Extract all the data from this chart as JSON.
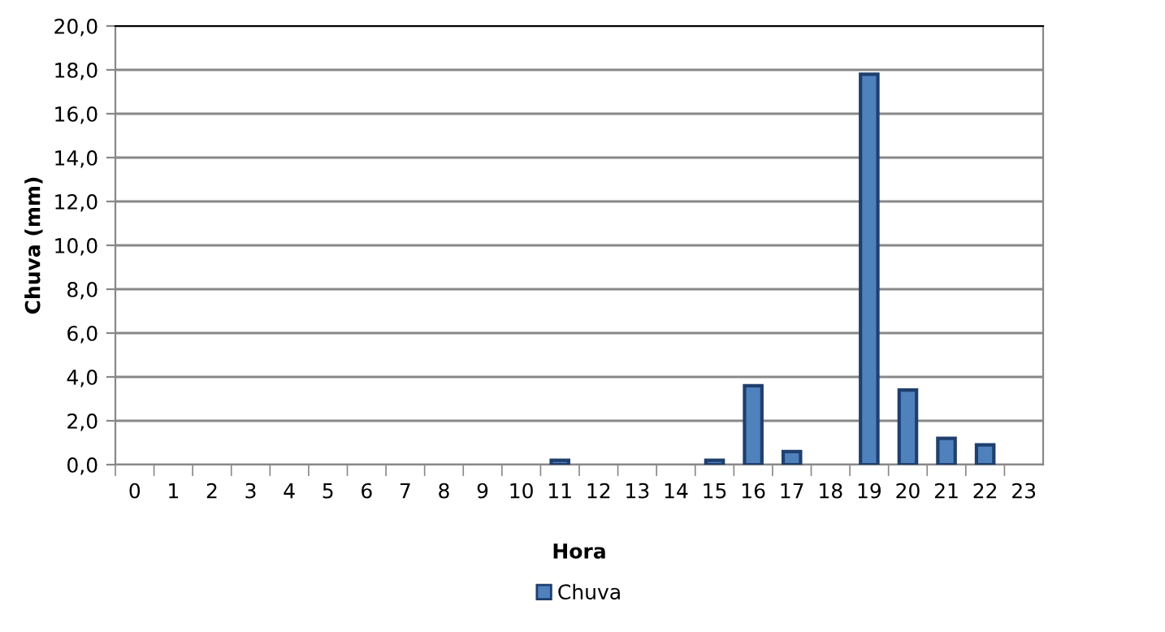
{
  "chart_data": {
    "type": "bar",
    "xlabel": "Hora",
    "ylabel": "Chuva (mm)",
    "categories": [
      "0",
      "1",
      "2",
      "3",
      "4",
      "5",
      "6",
      "7",
      "8",
      "9",
      "10",
      "11",
      "12",
      "13",
      "14",
      "15",
      "16",
      "17",
      "18",
      "19",
      "20",
      "21",
      "22",
      "23"
    ],
    "series": [
      {
        "name": "Chuva",
        "color": "#4f81bd",
        "values": [
          0,
          0,
          0,
          0,
          0,
          0,
          0,
          0,
          0,
          0,
          0,
          0.2,
          0,
          0,
          0,
          0.2,
          3.6,
          0.6,
          0,
          17.8,
          3.4,
          1.2,
          0.9,
          0
        ]
      }
    ],
    "ylim": [
      0,
      20
    ],
    "yticks": [
      {
        "value": 0,
        "label": "0,0"
      },
      {
        "value": 2,
        "label": "2,0"
      },
      {
        "value": 4,
        "label": "4,0"
      },
      {
        "value": 6,
        "label": "6,0"
      },
      {
        "value": 8,
        "label": "8,0"
      },
      {
        "value": 10,
        "label": "10,0"
      },
      {
        "value": 12,
        "label": "12,0"
      },
      {
        "value": 14,
        "label": "14,0"
      },
      {
        "value": 16,
        "label": "16,0"
      },
      {
        "value": 18,
        "label": "18,0"
      },
      {
        "value": 20,
        "label": "20,0"
      }
    ],
    "grid": "y",
    "legend": "bottom"
  }
}
